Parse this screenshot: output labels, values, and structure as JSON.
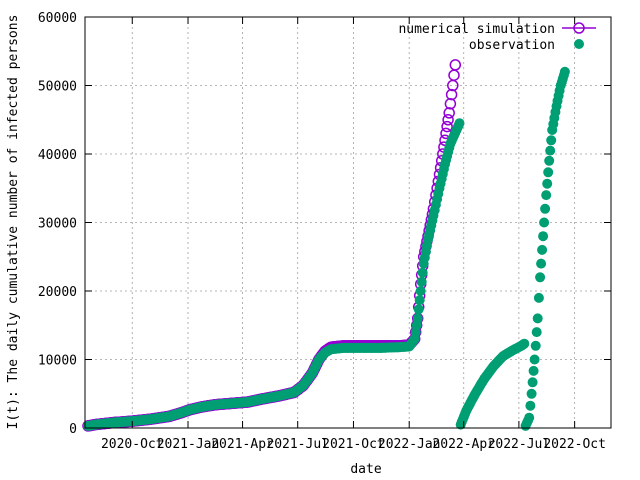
{
  "chart_data": {
    "type": "scatter",
    "xlabel": "date",
    "ylabel": "I(t): The daily cumulative number of infected persons",
    "xlim": [
      "2020-07-15",
      "2022-11-30"
    ],
    "ylim": [
      0,
      60000
    ],
    "grid": true,
    "legend_position": "top-right",
    "x_ticks": [
      {
        "date": "2020-10-01",
        "label": "2020-Oct"
      },
      {
        "date": "2021-01-01",
        "label": "2021-Jan"
      },
      {
        "date": "2021-04-01",
        "label": "2021-Apr"
      },
      {
        "date": "2021-07-01",
        "label": "2021-Jul"
      },
      {
        "date": "2021-10-01",
        "label": "2021-Oct"
      },
      {
        "date": "2022-01-01",
        "label": "2022-Jan"
      },
      {
        "date": "2022-04-01",
        "label": "2022-Apr"
      },
      {
        "date": "2022-07-01",
        "label": "2022-Jul"
      },
      {
        "date": "2022-10-01",
        "label": "2022-Oct"
      }
    ],
    "y_ticks": [
      0,
      10000,
      20000,
      30000,
      40000,
      50000,
      60000
    ],
    "series": [
      {
        "name": "numerical simulation",
        "color": "#9400d3",
        "marker": "open-circle",
        "points": [
          [
            "2020-07-20",
            300
          ],
          [
            "2020-08-01",
            500
          ],
          [
            "2020-09-01",
            800
          ],
          [
            "2020-10-01",
            1000
          ],
          [
            "2020-11-01",
            1300
          ],
          [
            "2020-12-01",
            1700
          ],
          [
            "2020-12-20",
            2200
          ],
          [
            "2021-01-05",
            2700
          ],
          [
            "2021-01-25",
            3100
          ],
          [
            "2021-02-15",
            3400
          ],
          [
            "2021-03-15",
            3600
          ],
          [
            "2021-04-10",
            3800
          ],
          [
            "2021-05-01",
            4200
          ],
          [
            "2021-06-01",
            4700
          ],
          [
            "2021-06-25",
            5200
          ],
          [
            "2021-07-10",
            6200
          ],
          [
            "2021-07-25",
            8000
          ],
          [
            "2021-08-05",
            10000
          ],
          [
            "2021-08-15",
            11200
          ],
          [
            "2021-08-25",
            11800
          ],
          [
            "2021-09-15",
            12000
          ],
          [
            "2021-10-15",
            12000
          ],
          [
            "2021-11-15",
            12000
          ],
          [
            "2021-12-15",
            12000
          ],
          [
            "2022-01-01",
            12100
          ],
          [
            "2022-01-10",
            13000
          ],
          [
            "2022-01-15",
            16000
          ],
          [
            "2022-01-20",
            21000
          ],
          [
            "2022-01-25",
            25000
          ],
          [
            "2022-02-01",
            28000
          ],
          [
            "2022-02-10",
            32000
          ],
          [
            "2022-02-20",
            37000
          ],
          [
            "2022-03-01",
            42000
          ],
          [
            "2022-03-08",
            46000
          ],
          [
            "2022-03-14",
            50000
          ],
          [
            "2022-03-18",
            53000
          ]
        ]
      },
      {
        "name": "observation",
        "color": "#009e73",
        "marker": "filled-circle",
        "points": [
          [
            "2020-07-20",
            300
          ],
          [
            "2020-08-01",
            500
          ],
          [
            "2020-09-01",
            800
          ],
          [
            "2020-10-01",
            1000
          ],
          [
            "2020-11-01",
            1300
          ],
          [
            "2020-12-01",
            1700
          ],
          [
            "2020-12-20",
            2200
          ],
          [
            "2021-01-05",
            2700
          ],
          [
            "2021-01-25",
            3100
          ],
          [
            "2021-02-15",
            3400
          ],
          [
            "2021-03-15",
            3600
          ],
          [
            "2021-04-10",
            3800
          ],
          [
            "2021-05-01",
            4200
          ],
          [
            "2021-06-01",
            4700
          ],
          [
            "2021-06-25",
            5200
          ],
          [
            "2021-07-10",
            6200
          ],
          [
            "2021-07-25",
            8000
          ],
          [
            "2021-08-05",
            10000
          ],
          [
            "2021-08-15",
            11000
          ],
          [
            "2021-08-25",
            11500
          ],
          [
            "2021-09-15",
            11700
          ],
          [
            "2021-10-15",
            11700
          ],
          [
            "2021-11-15",
            11700
          ],
          [
            "2021-12-15",
            11800
          ],
          [
            "2022-01-01",
            11900
          ],
          [
            "2022-01-10",
            13000
          ],
          [
            "2022-01-15",
            16000
          ],
          [
            "2022-01-20",
            20000
          ],
          [
            "2022-01-25",
            24000
          ],
          [
            "2022-02-01",
            27500
          ],
          [
            "2022-02-10",
            31000
          ],
          [
            "2022-02-20",
            35000
          ],
          [
            "2022-03-01",
            38500
          ],
          [
            "2022-03-10",
            41500
          ],
          [
            "2022-03-20",
            43500
          ],
          [
            "2022-03-25",
            44500
          ],
          [
            "2022-03-27",
            500
          ],
          [
            "2022-04-05",
            2500
          ],
          [
            "2022-04-20",
            5000
          ],
          [
            "2022-05-05",
            7200
          ],
          [
            "2022-05-20",
            9000
          ],
          [
            "2022-06-05",
            10500
          ],
          [
            "2022-06-20",
            11300
          ],
          [
            "2022-07-05",
            12000
          ],
          [
            "2022-07-10",
            12300
          ],
          [
            "2022-07-12",
            300
          ],
          [
            "2022-07-18",
            1500
          ],
          [
            "2022-07-22",
            5000
          ],
          [
            "2022-07-27",
            10000
          ],
          [
            "2022-08-01",
            16000
          ],
          [
            "2022-08-05",
            22000
          ],
          [
            "2022-08-10",
            28000
          ],
          [
            "2022-08-15",
            34000
          ],
          [
            "2022-08-20",
            39000
          ],
          [
            "2022-08-25",
            43500
          ],
          [
            "2022-09-01",
            47000
          ],
          [
            "2022-09-08",
            50000
          ],
          [
            "2022-09-15",
            52000
          ]
        ]
      }
    ]
  }
}
